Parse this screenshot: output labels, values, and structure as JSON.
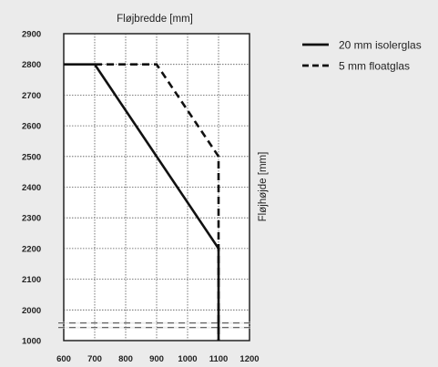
{
  "chart_data": {
    "type": "line",
    "xlabel": "Fløjbredde [mm]",
    "ylabel": "Fløjhøjde [mm]",
    "xlim": [
      600,
      1200
    ],
    "x_ticks": [
      600,
      700,
      800,
      900,
      1000,
      1100,
      1200
    ],
    "y_ticks": [
      1000,
      2000,
      2100,
      2200,
      2300,
      2400,
      2500,
      2600,
      2700,
      2800,
      2900
    ],
    "y_axis_break": "between 1000 and 2000",
    "grid": true,
    "legend_position": "top-right",
    "series": [
      {
        "name": "20 mm isolerglas",
        "style": "solid",
        "color": "#111111",
        "points": [
          [
            600,
            2800
          ],
          [
            700,
            2800
          ],
          [
            1100,
            2200
          ],
          [
            1100,
            1000
          ]
        ]
      },
      {
        "name": "5 mm floatglas",
        "style": "dashed",
        "color": "#111111",
        "points": [
          [
            700,
            2800
          ],
          [
            900,
            2800
          ],
          [
            1100,
            2500
          ],
          [
            1100,
            1000
          ]
        ]
      }
    ]
  }
}
